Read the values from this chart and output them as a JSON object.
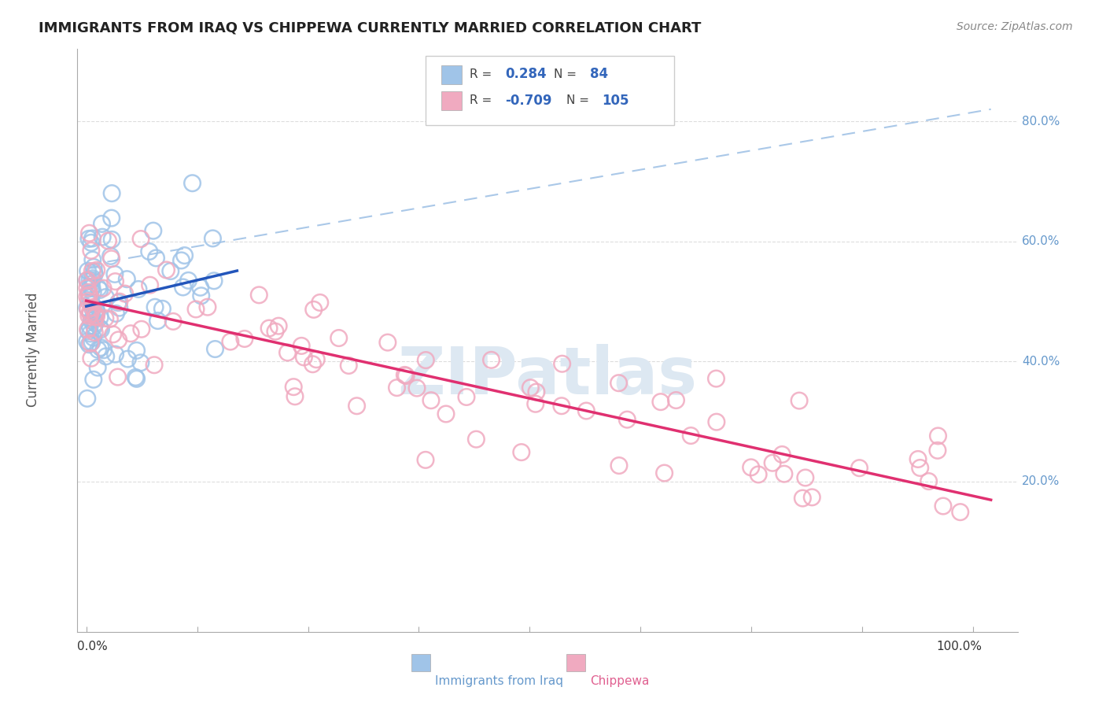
{
  "title": "IMMIGRANTS FROM IRAQ VS CHIPPEWA CURRENTLY MARRIED CORRELATION CHART",
  "source": "Source: ZipAtlas.com",
  "ylabel": "Currently Married",
  "legend_label1": "Immigrants from Iraq",
  "legend_label2": "Chippewa",
  "r1": 0.284,
  "n1": 84,
  "r2": -0.709,
  "n2": 105,
  "blue_color": "#a0c4e8",
  "pink_color": "#f0aac0",
  "blue_line_color": "#2255bb",
  "pink_line_color": "#e03070",
  "dash_line_color": "#aac8e8",
  "label_color": "#6699cc",
  "watermark_color": "#dde8f2",
  "title_color": "#222222",
  "source_color": "#888888",
  "ylabel_color": "#555555",
  "grid_color": "#dddddd",
  "right_label_color": "#6699cc",
  "bottom_label_color": "#333333"
}
